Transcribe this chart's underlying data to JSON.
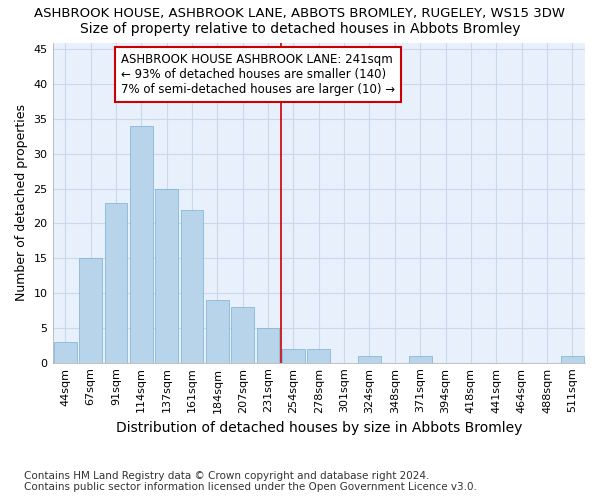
{
  "title": "ASHBROOK HOUSE, ASHBROOK LANE, ABBOTS BROMLEY, RUGELEY, WS15 3DW",
  "subtitle": "Size of property relative to detached houses in Abbots Bromley",
  "xlabel": "Distribution of detached houses by size in Abbots Bromley",
  "ylabel": "Number of detached properties",
  "categories": [
    "44sqm",
    "67sqm",
    "91sqm",
    "114sqm",
    "137sqm",
    "161sqm",
    "184sqm",
    "207sqm",
    "231sqm",
    "254sqm",
    "278sqm",
    "301sqm",
    "324sqm",
    "348sqm",
    "371sqm",
    "394sqm",
    "418sqm",
    "441sqm",
    "464sqm",
    "488sqm",
    "511sqm"
  ],
  "values": [
    3,
    15,
    23,
    34,
    25,
    22,
    9,
    8,
    5,
    2,
    2,
    0,
    1,
    0,
    1,
    0,
    0,
    0,
    0,
    0,
    1
  ],
  "bar_color": "#b8d4ea",
  "bar_edge_color": "#7aafd4",
  "vline_x_index": 9,
  "vline_color": "#cc0000",
  "annotation_text": "ASHBROOK HOUSE ASHBROOK LANE: 241sqm\n← 93% of detached houses are smaller (140)\n7% of semi-detached houses are larger (10) →",
  "annotation_box_color": "#ffffff",
  "annotation_box_edge": "#cc0000",
  "ylim": [
    0,
    46
  ],
  "yticks": [
    0,
    5,
    10,
    15,
    20,
    25,
    30,
    35,
    40,
    45
  ],
  "background_color": "#e8f0fb",
  "grid_color": "#c8d8ee",
  "footer_text": "Contains HM Land Registry data © Crown copyright and database right 2024.\nContains public sector information licensed under the Open Government Licence v3.0.",
  "title_fontsize": 9.5,
  "subtitle_fontsize": 10,
  "xlabel_fontsize": 10,
  "ylabel_fontsize": 9,
  "tick_fontsize": 8,
  "annotation_fontsize": 8.5,
  "footer_fontsize": 7.5
}
